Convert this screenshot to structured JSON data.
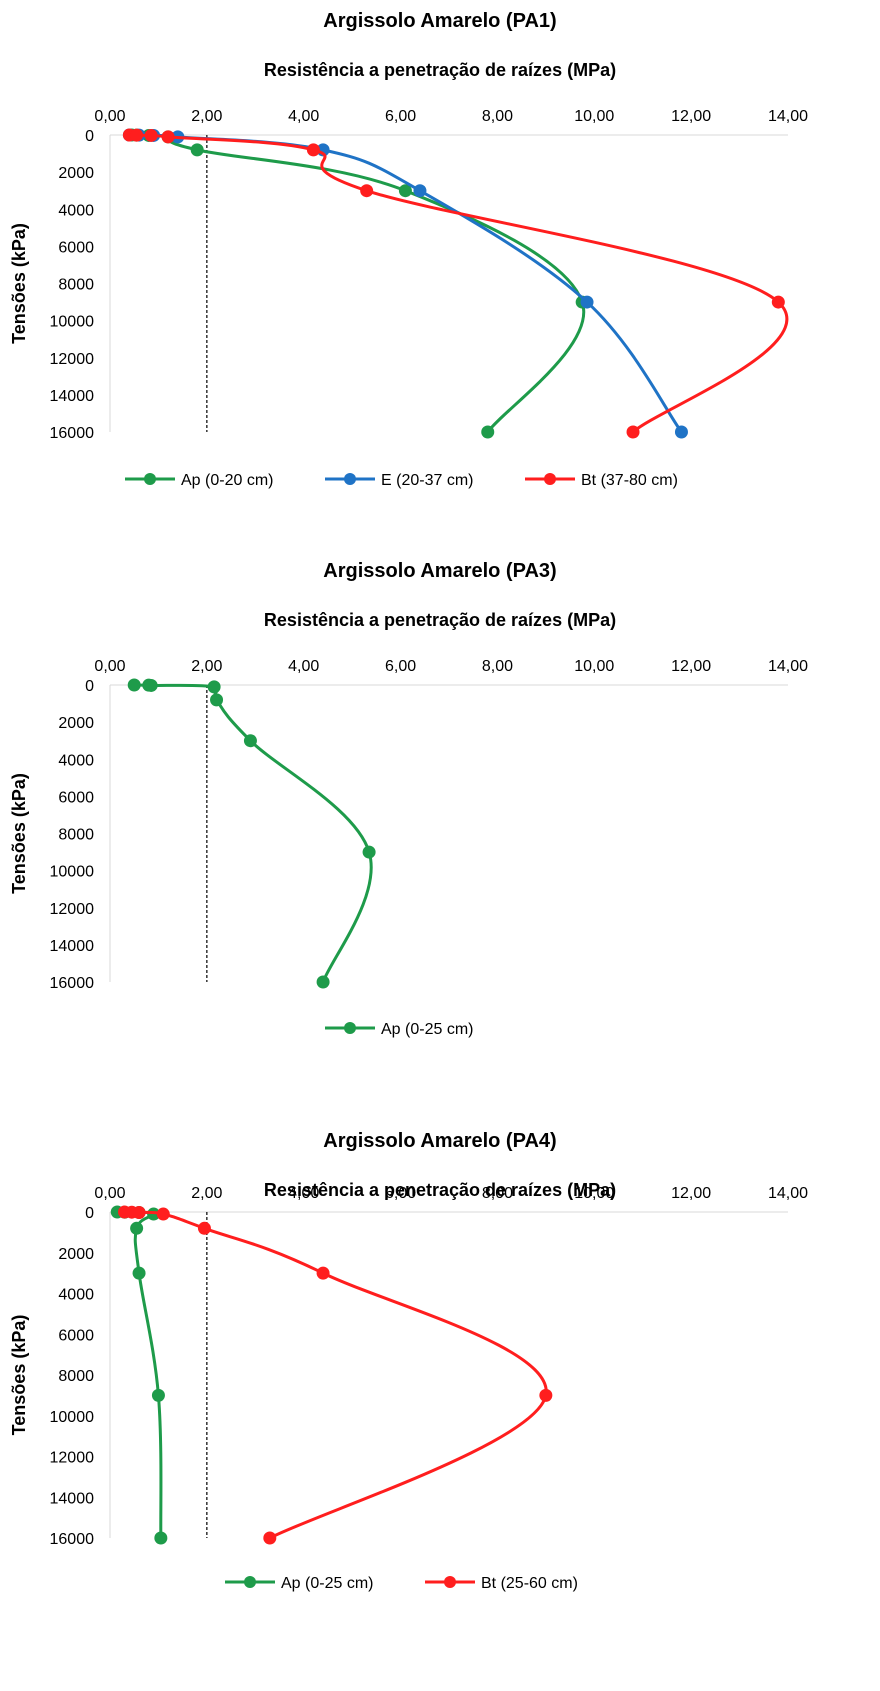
{
  "chart_data": [
    {
      "type": "line",
      "title": "Argissolo Amarelo (PA1)",
      "subtitle": "Resistência a penetração de raízes (MPa)",
      "ylabel": "Tensões (kPa)",
      "xlabel": "",
      "x_axis_position": "top",
      "y_axis_reversed": true,
      "xlim": [
        0,
        14
      ],
      "ylim": [
        0,
        16000
      ],
      "x_tick_labels": [
        "0,00",
        "2,00",
        "4,00",
        "6,00",
        "8,00",
        "10,00",
        "12,00",
        "14,00"
      ],
      "y_tick_labels": [
        "0",
        "2000",
        "4000",
        "6000",
        "8000",
        "10000",
        "12000",
        "14000",
        "16000"
      ],
      "reference_line_x": 2,
      "legend_position": "bottom",
      "series": [
        {
          "name": "Ap (0-20 cm)",
          "color": "#1e9b4a",
          "points": [
            [
              0.45,
              0
            ],
            [
              0.55,
              10
            ],
            [
              0.8,
              25
            ],
            [
              1.2,
              100
            ],
            [
              1.8,
              800
            ],
            [
              6.1,
              3000
            ],
            [
              9.75,
              9000
            ],
            [
              7.8,
              16000
            ]
          ]
        },
        {
          "name": "E (20-37 cm)",
          "color": "#1f73c6",
          "points": [
            [
              0.4,
              0
            ],
            [
              0.6,
              10
            ],
            [
              0.9,
              25
            ],
            [
              1.4,
              100
            ],
            [
              4.4,
              800
            ],
            [
              6.4,
              3000
            ],
            [
              9.85,
              9000
            ],
            [
              11.8,
              16000
            ]
          ]
        },
        {
          "name": "Bt (37-80 cm)",
          "color": "#ff1e1e",
          "points": [
            [
              0.4,
              0
            ],
            [
              0.55,
              10
            ],
            [
              0.85,
              25
            ],
            [
              1.2,
              100
            ],
            [
              4.2,
              800
            ],
            [
              5.3,
              3000
            ],
            [
              13.8,
              9000
            ],
            [
              10.8,
              16000
            ]
          ]
        }
      ]
    },
    {
      "type": "line",
      "title": "Argissolo Amarelo (PA3)",
      "subtitle": "Resistência a penetração de raízes (MPa)",
      "ylabel": "Tensões (kPa)",
      "xlabel": "",
      "x_axis_position": "top",
      "y_axis_reversed": true,
      "xlim": [
        0,
        14
      ],
      "ylim": [
        0,
        16000
      ],
      "x_tick_labels": [
        "0,00",
        "2,00",
        "4,00",
        "6,00",
        "8,00",
        "10,00",
        "12,00",
        "14,00"
      ],
      "y_tick_labels": [
        "0",
        "2000",
        "4000",
        "6000",
        "8000",
        "10000",
        "12000",
        "14000",
        "16000"
      ],
      "reference_line_x": 2,
      "legend_position": "bottom",
      "series": [
        {
          "name": "Ap (0-25 cm)",
          "color": "#1e9b4a",
          "points": [
            [
              0.5,
              0
            ],
            [
              0.8,
              10
            ],
            [
              0.85,
              25
            ],
            [
              2.15,
              100
            ],
            [
              2.2,
              800
            ],
            [
              2.9,
              3000
            ],
            [
              5.35,
              9000
            ],
            [
              4.4,
              16000
            ]
          ]
        }
      ]
    },
    {
      "type": "line",
      "title": "Argissolo Amarelo (PA4)",
      "subtitle": "Resistência a penetração de raízes (MPa)",
      "ylabel": "Tensões (kPa)",
      "xlabel": "",
      "x_axis_position": "top",
      "y_axis_reversed": true,
      "xlim": [
        0,
        14
      ],
      "ylim": [
        0,
        16000
      ],
      "x_tick_labels": [
        "0,00",
        "2,00",
        "4,00",
        "6,00",
        "8,00",
        "10,00",
        "12,00",
        "14,00"
      ],
      "y_tick_labels": [
        "0",
        "2000",
        "4000",
        "6000",
        "8000",
        "10000",
        "12000",
        "14000",
        "16000"
      ],
      "reference_line_x": 2,
      "legend_position": "bottom",
      "series": [
        {
          "name": "Ap (0-25 cm)",
          "color": "#1e9b4a",
          "points": [
            [
              0.15,
              0
            ],
            [
              0.3,
              10
            ],
            [
              0.6,
              25
            ],
            [
              0.9,
              100
            ],
            [
              0.55,
              800
            ],
            [
              0.6,
              3000
            ],
            [
              1.0,
              9000
            ],
            [
              1.05,
              16000
            ]
          ]
        },
        {
          "name": "Bt (25-60 cm)",
          "color": "#ff1e1e",
          "points": [
            [
              0.3,
              0
            ],
            [
              0.45,
              10
            ],
            [
              0.6,
              25
            ],
            [
              1.1,
              100
            ],
            [
              1.95,
              800
            ],
            [
              4.4,
              3000
            ],
            [
              9.0,
              9000
            ],
            [
              3.3,
              16000
            ]
          ]
        }
      ]
    }
  ]
}
